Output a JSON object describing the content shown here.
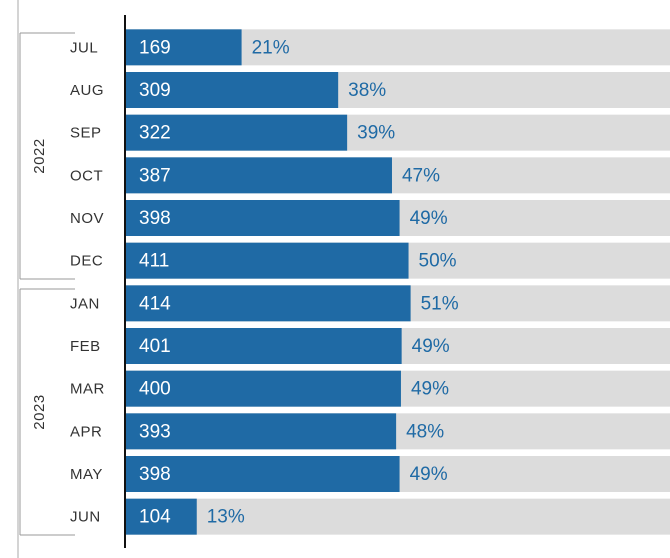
{
  "chart_data": {
    "type": "bar",
    "orientation": "horizontal",
    "categories": [
      "JUL",
      "AUG",
      "SEP",
      "OCT",
      "NOV",
      "DEC",
      "JAN",
      "FEB",
      "MAR",
      "APR",
      "MAY",
      "JUN"
    ],
    "values": [
      169,
      309,
      322,
      387,
      398,
      411,
      414,
      401,
      400,
      393,
      398,
      104
    ],
    "share_labels": [
      "21%",
      "38%",
      "39%",
      "47%",
      "49%",
      "50%",
      "51%",
      "49%",
      "49%",
      "48%",
      "49%",
      "13%"
    ],
    "groups": [
      {
        "label": "2022",
        "count": 6
      },
      {
        "label": "2023",
        "count": 6
      }
    ],
    "color": "#1f6aa5",
    "background_color": "#dcdcdc",
    "xlim": [
      0,
      790
    ]
  }
}
